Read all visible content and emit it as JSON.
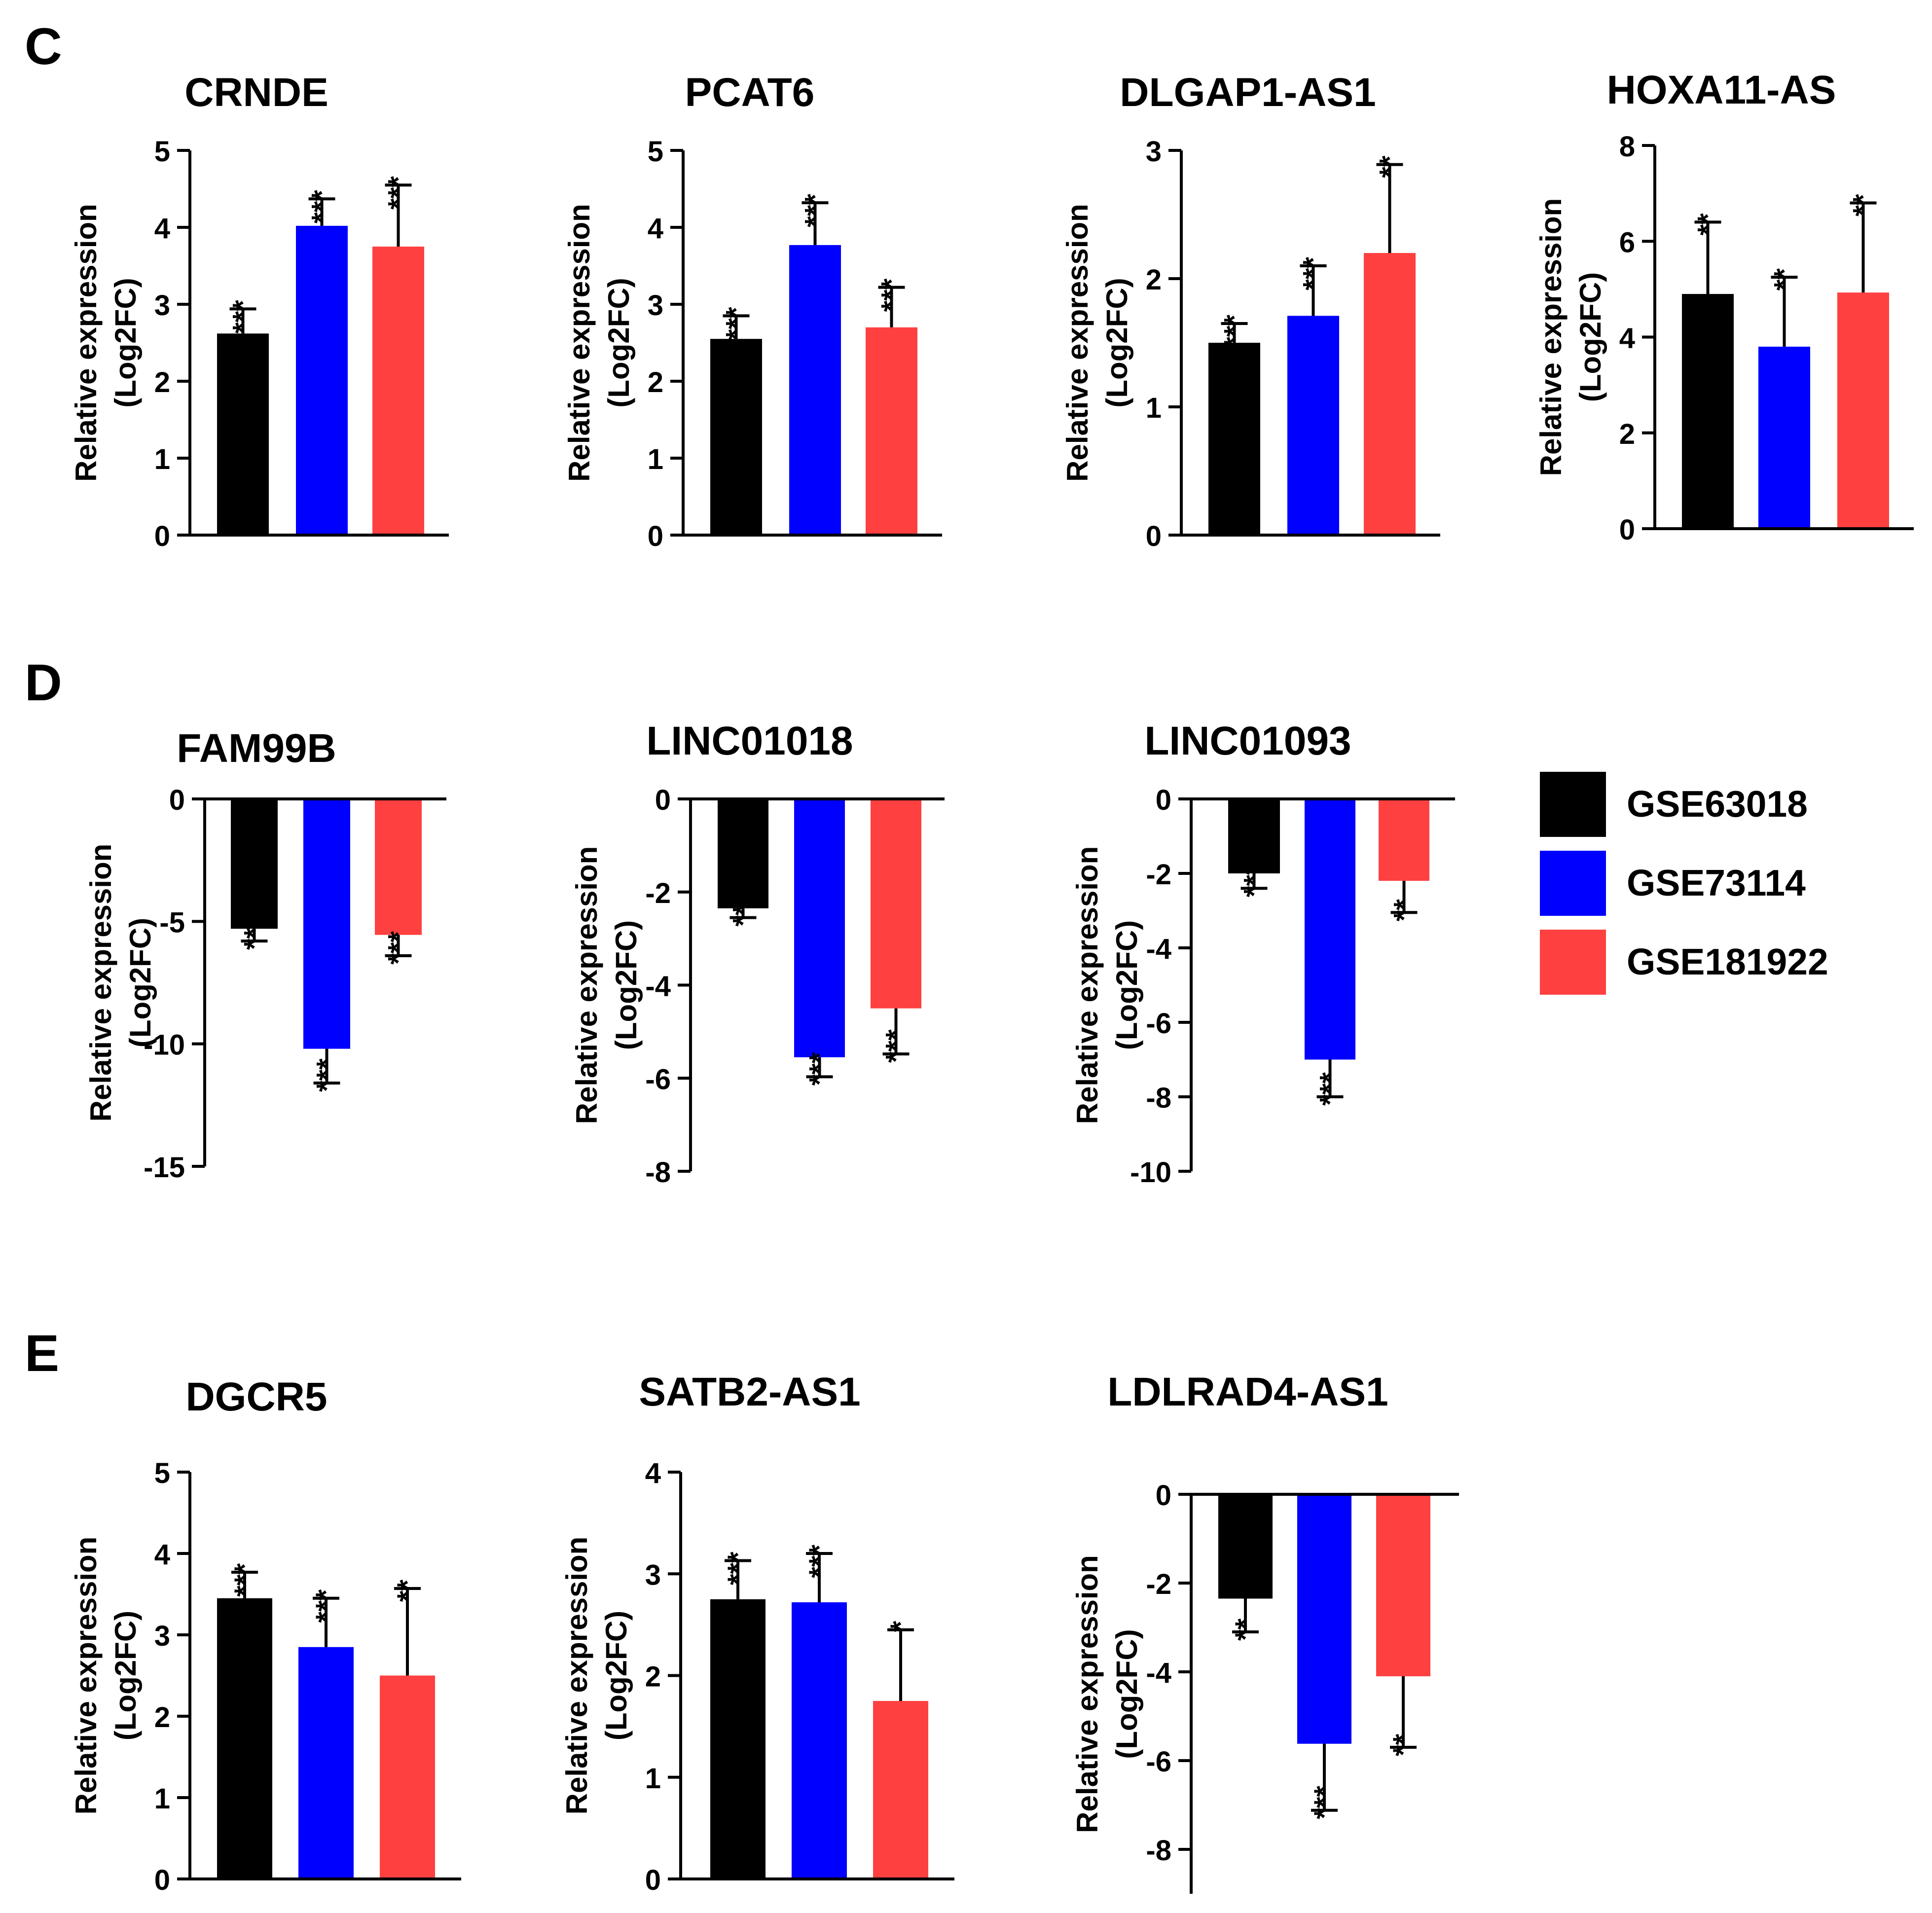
{
  "series_legend": [
    {
      "name": "GSE63018",
      "color": "#000000"
    },
    {
      "name": "GSE73114",
      "color": "#0000ff"
    },
    {
      "name": "GSE181922",
      "color": "#ff4040"
    }
  ],
  "chart_data": [
    {
      "type": "bar",
      "panel": "C",
      "title": "CRNDE",
      "ylabel": "Relative expression",
      "ylabel2": "(Log2FC)",
      "ylim": [
        0,
        5
      ],
      "ticks": [
        0,
        1,
        2,
        3,
        4,
        5
      ],
      "series": [
        {
          "name": "GSE63018",
          "value": 2.62,
          "error": 0.32,
          "sig": "***"
        },
        {
          "name": "GSE73114",
          "value": 4.02,
          "error": 0.35,
          "sig": "***"
        },
        {
          "name": "GSE181922",
          "value": 3.75,
          "error": 0.8,
          "sig": "***"
        }
      ]
    },
    {
      "type": "bar",
      "panel": "C",
      "title": "PCAT6",
      "ylabel": "Relative expression",
      "ylabel2": "(Log2FC)",
      "ylim": [
        0,
        5
      ],
      "ticks": [
        0,
        1,
        2,
        3,
        4,
        5
      ],
      "series": [
        {
          "name": "GSE63018",
          "value": 2.55,
          "error": 0.3,
          "sig": "***"
        },
        {
          "name": "GSE73114",
          "value": 3.77,
          "error": 0.55,
          "sig": "***"
        },
        {
          "name": "GSE181922",
          "value": 2.7,
          "error": 0.52,
          "sig": "***"
        }
      ]
    },
    {
      "type": "bar",
      "panel": "C",
      "title": "DLGAP1-AS1",
      "ylabel": "Relative expression",
      "ylabel2": "(Log2FC)",
      "ylim": [
        0,
        3
      ],
      "ticks": [
        0,
        1,
        2,
        3
      ],
      "series": [
        {
          "name": "GSE63018",
          "value": 1.5,
          "error": 0.15,
          "sig": "***"
        },
        {
          "name": "GSE73114",
          "value": 1.71,
          "error": 0.39,
          "sig": "***"
        },
        {
          "name": "GSE181922",
          "value": 2.2,
          "error": 0.69,
          "sig": "**"
        }
      ]
    },
    {
      "type": "bar",
      "panel": "C",
      "title": "HOXA11-AS",
      "ylabel": "Relative expression",
      "ylabel2": "(Log2FC)",
      "ylim": [
        0,
        8
      ],
      "ticks": [
        0,
        2,
        4,
        6,
        8
      ],
      "series": [
        {
          "name": "GSE63018",
          "value": 4.9,
          "error": 1.5,
          "sig": "**"
        },
        {
          "name": "GSE73114",
          "value": 3.8,
          "error": 1.45,
          "sig": "**"
        },
        {
          "name": "GSE181922",
          "value": 4.93,
          "error": 1.87,
          "sig": "**"
        }
      ]
    },
    {
      "type": "bar",
      "panel": "D",
      "title": "FAM99B",
      "ylabel": "Relative expression",
      "ylabel2": "(Log2FC)",
      "ylim": [
        -15,
        0
      ],
      "ticks": [
        0,
        -5,
        -10,
        -15
      ],
      "series": [
        {
          "name": "GSE63018",
          "value": -5.3,
          "error": 0.5,
          "sig": "***"
        },
        {
          "name": "GSE73114",
          "value": -10.2,
          "error": 1.4,
          "sig": "***"
        },
        {
          "name": "GSE181922",
          "value": -5.55,
          "error": 0.85,
          "sig": "***"
        }
      ]
    },
    {
      "type": "bar",
      "panel": "D",
      "title": "LINC01018",
      "ylabel": "Relative expression",
      "ylabel2": "(Log2FC)",
      "ylim": [
        -8,
        0
      ],
      "ticks": [
        0,
        -2,
        -4,
        -6,
        -8
      ],
      "series": [
        {
          "name": "GSE63018",
          "value": -2.35,
          "error": 0.2,
          "sig": "***"
        },
        {
          "name": "GSE73114",
          "value": -5.55,
          "error": 0.42,
          "sig": "***"
        },
        {
          "name": "GSE181922",
          "value": -4.5,
          "error": 0.98,
          "sig": "***"
        }
      ]
    },
    {
      "type": "bar",
      "panel": "D",
      "title": "LINC01093",
      "ylabel": "Relative expression",
      "ylabel2": "(Log2FC)",
      "ylim": [
        -10,
        0
      ],
      "ticks": [
        0,
        -2,
        -4,
        -6,
        -8,
        -10
      ],
      "series": [
        {
          "name": "GSE63018",
          "value": -2.0,
          "error": 0.4,
          "sig": "***"
        },
        {
          "name": "GSE73114",
          "value": -7.0,
          "error": 1.0,
          "sig": "***"
        },
        {
          "name": "GSE181922",
          "value": -2.2,
          "error": 0.85,
          "sig": "**"
        }
      ]
    },
    {
      "type": "bar",
      "panel": "E",
      "title": "DGCR5",
      "ylabel": "Relative expression",
      "ylabel2": "(Log2FC)",
      "ylim": [
        0,
        5
      ],
      "ticks": [
        0,
        1,
        2,
        3,
        4,
        5
      ],
      "series": [
        {
          "name": "GSE63018",
          "value": 3.45,
          "error": 0.32,
          "sig": "***"
        },
        {
          "name": "GSE73114",
          "value": 2.85,
          "error": 0.6,
          "sig": "***"
        },
        {
          "name": "GSE181922",
          "value": 2.5,
          "error": 1.07,
          "sig": "**"
        }
      ]
    },
    {
      "type": "bar",
      "panel": "E",
      "title": "SATB2-AS1",
      "ylabel": "Relative expression",
      "ylabel2": "(Log2FC)",
      "ylim": [
        0,
        4
      ],
      "ticks": [
        0,
        1,
        2,
        3,
        4
      ],
      "series": [
        {
          "name": "GSE63018",
          "value": 2.75,
          "error": 0.38,
          "sig": "***"
        },
        {
          "name": "GSE73114",
          "value": 2.72,
          "error": 0.48,
          "sig": "***"
        },
        {
          "name": "GSE181922",
          "value": 1.75,
          "error": 0.7,
          "sig": "*"
        }
      ]
    },
    {
      "type": "bar",
      "panel": "E",
      "title": "LDLRAD4-AS1",
      "ylabel": "Relative expression",
      "ylabel2": "(Log2FC)",
      "ylim": [
        -9,
        0
      ],
      "ticks": [
        0,
        -2,
        -4,
        -6,
        -8
      ],
      "series": [
        {
          "name": "GSE63018",
          "value": -2.35,
          "error": 0.75,
          "sig": "**"
        },
        {
          "name": "GSE73114",
          "value": -5.62,
          "error": 1.5,
          "sig": "***"
        },
        {
          "name": "GSE181922",
          "value": -4.1,
          "error": 1.6,
          "sig": "**"
        }
      ]
    }
  ]
}
